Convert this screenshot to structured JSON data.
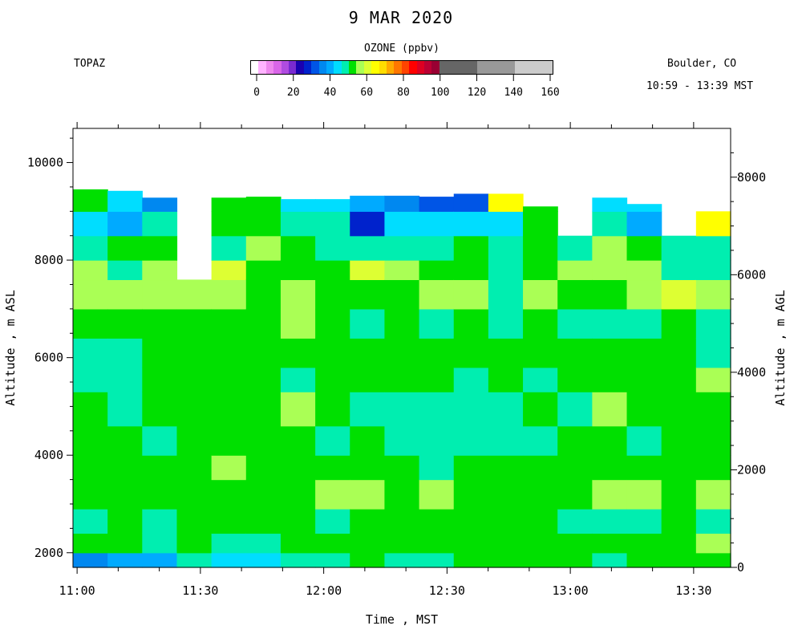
{
  "header": {
    "title": "9 MAR 2020",
    "site": "TOPAZ",
    "location": "Boulder, CO",
    "time_range": "10:59 - 13:39 MST"
  },
  "colorbar": {
    "title": "OZONE (ppbv)",
    "tick_labels": [
      "0",
      "20",
      "40",
      "60",
      "80",
      "100",
      "120",
      "140",
      "160"
    ],
    "tick_values": [
      0,
      20,
      40,
      60,
      80,
      100,
      120,
      140,
      160
    ],
    "levels": [
      {
        "from": 0,
        "to": 4,
        "color": "#ffffff"
      },
      {
        "from": 4,
        "to": 8,
        "color": "#ffb3ff"
      },
      {
        "from": 8,
        "to": 12,
        "color": "#ee88ee"
      },
      {
        "from": 12,
        "to": 16,
        "color": "#d966e8"
      },
      {
        "from": 16,
        "to": 20,
        "color": "#b04ce0"
      },
      {
        "from": 20,
        "to": 24,
        "color": "#7a2ad0"
      },
      {
        "from": 24,
        "to": 28,
        "color": "#1a00b0"
      },
      {
        "from": 28,
        "to": 32,
        "color": "#0022cc"
      },
      {
        "from": 32,
        "to": 36,
        "color": "#0055e6"
      },
      {
        "from": 36,
        "to": 40,
        "color": "#0088f0"
      },
      {
        "from": 40,
        "to": 44,
        "color": "#00aaff"
      },
      {
        "from": 44,
        "to": 48,
        "color": "#00ddff"
      },
      {
        "from": 48,
        "to": 52,
        "color": "#00eeb0"
      },
      {
        "from": 52,
        "to": 56,
        "color": "#00e000"
      },
      {
        "from": 56,
        "to": 60,
        "color": "#aaff55"
      },
      {
        "from": 60,
        "to": 64,
        "color": "#ddff33"
      },
      {
        "from": 64,
        "to": 68,
        "color": "#ffff00"
      },
      {
        "from": 68,
        "to": 72,
        "color": "#ffdd00"
      },
      {
        "from": 72,
        "to": 76,
        "color": "#ffaa00"
      },
      {
        "from": 76,
        "to": 80,
        "color": "#ff7700"
      },
      {
        "from": 80,
        "to": 84,
        "color": "#ff4400"
      },
      {
        "from": 84,
        "to": 88,
        "color": "#ff0000"
      },
      {
        "from": 88,
        "to": 92,
        "color": "#dd0022"
      },
      {
        "from": 92,
        "to": 96,
        "color": "#bb0033"
      },
      {
        "from": 96,
        "to": 100,
        "color": "#990033"
      },
      {
        "from": 100,
        "to": 120,
        "color": "#666666"
      },
      {
        "from": 120,
        "to": 140,
        "color": "#999999"
      },
      {
        "from": 140,
        "to": 160,
        "color": "#cccccc"
      }
    ]
  },
  "chart_data": {
    "type": "heatmap",
    "x_label": "Time , MST",
    "y_label_left": "Altitude , m ASL",
    "y_label_right": "Altitude , m AGL",
    "x_ticks": [
      "11:00",
      "11:30",
      "12:00",
      "12:30",
      "13:00",
      "13:30"
    ],
    "x_tick_minutes": [
      0,
      30,
      60,
      90,
      120,
      150
    ],
    "x_range_minutes": [
      -1,
      159
    ],
    "y_ticks_left": [
      2000,
      4000,
      6000,
      8000,
      10000
    ],
    "y_range_left": [
      1700,
      10700
    ],
    "y_ticks_right": [
      0,
      2000,
      4000,
      6000,
      8000
    ],
    "surface_altitude_m": 1700,
    "profile_interval_minutes": 8,
    "column_top_altitudes_m": [
      9450,
      9420,
      9280,
      7600,
      9280,
      9300,
      9250,
      9250,
      9320,
      9320,
      9300,
      9360,
      9360,
      9100,
      8600,
      9280,
      9150,
      8620,
      9150
    ],
    "layers": [
      {
        "top": 2000,
        "values": [
          38,
          40,
          42,
          48,
          45,
          44,
          48,
          50,
          52,
          48,
          50,
          52,
          52,
          52,
          52,
          50,
          52,
          52,
          52
        ]
      },
      {
        "top": 2400,
        "values": [
          52,
          52,
          50,
          54,
          50,
          48,
          52,
          54,
          53,
          54,
          53,
          54,
          54,
          54,
          53,
          53,
          52,
          53,
          56
        ]
      },
      {
        "top": 2900,
        "values": [
          50,
          54,
          50,
          54,
          54,
          54,
          54,
          50,
          54,
          53,
          54,
          54,
          54,
          54,
          50,
          50,
          50,
          54,
          50
        ]
      },
      {
        "top": 3500,
        "values": [
          54,
          54,
          54,
          54,
          54,
          54,
          54,
          56,
          57,
          54,
          56,
          54,
          54,
          54,
          54,
          56,
          57,
          54,
          56
        ]
      },
      {
        "top": 4000,
        "values": [
          54,
          54,
          54,
          54,
          56,
          54,
          54,
          54,
          54,
          54,
          50,
          54,
          54,
          54,
          54,
          54,
          54,
          54,
          54
        ]
      },
      {
        "top": 4600,
        "values": [
          54,
          54,
          50,
          54,
          54,
          54,
          54,
          50,
          54,
          50,
          50,
          50,
          50,
          50,
          54,
          54,
          50,
          54,
          54
        ]
      },
      {
        "top": 5300,
        "values": [
          54,
          50,
          54,
          54,
          54,
          54,
          57,
          54,
          50,
          50,
          50,
          50,
          50,
          54,
          50,
          57,
          54,
          54,
          54
        ]
      },
      {
        "top": 5800,
        "values": [
          50,
          50,
          54,
          54,
          54,
          54,
          50,
          54,
          54,
          54,
          54,
          50,
          54,
          50,
          54,
          54,
          54,
          54,
          57
        ]
      },
      {
        "top": 6400,
        "values": [
          50,
          50,
          54,
          54,
          54,
          54,
          54,
          54,
          54,
          54,
          54,
          54,
          54,
          54,
          54,
          54,
          54,
          54,
          50
        ]
      },
      {
        "top": 7000,
        "values": [
          54,
          54,
          54,
          54,
          54,
          54,
          57,
          54,
          50,
          54,
          50,
          54,
          50,
          54,
          50,
          50,
          50,
          54,
          48
        ]
      },
      {
        "top": 7600,
        "values": [
          57,
          57,
          57,
          57,
          57,
          54,
          57,
          54,
          54,
          54,
          56,
          57,
          50,
          57,
          54,
          54,
          57,
          60,
          57
        ]
      },
      {
        "top": 8000,
        "values": [
          58,
          50,
          57,
          0,
          60,
          54,
          54,
          54,
          60,
          57,
          54,
          54,
          50,
          54,
          57,
          56,
          57,
          50,
          50
        ]
      },
      {
        "top": 8500,
        "values": [
          48,
          54,
          54,
          0,
          50,
          56,
          54,
          50,
          50,
          50,
          50,
          54,
          50,
          54,
          50,
          57,
          54,
          48,
          50
        ]
      },
      {
        "top": 9000,
        "values": [
          44,
          40,
          48,
          0,
          54,
          54,
          50,
          48,
          28,
          44,
          44,
          44,
          44,
          54,
          0,
          50,
          40,
          0,
          64
        ]
      },
      {
        "top": 9500,
        "values": [
          54,
          44,
          36,
          0,
          54,
          54,
          44,
          44,
          40,
          36,
          34,
          34,
          64,
          54,
          0,
          44,
          44,
          0,
          0
        ]
      }
    ]
  }
}
